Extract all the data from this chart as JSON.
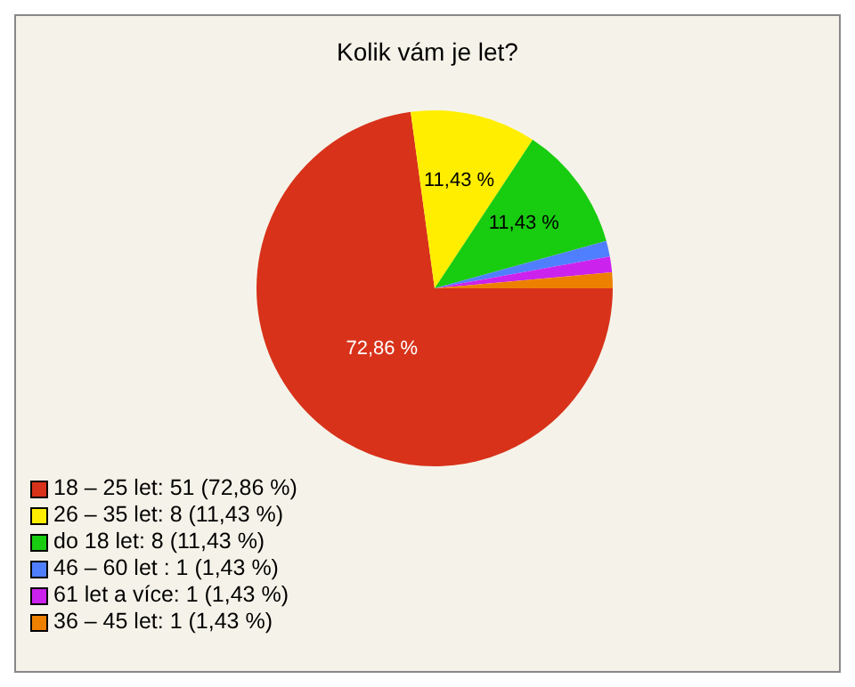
{
  "chart_data": {
    "type": "pie",
    "title": "Kolik vám je let?",
    "categories": [
      "18 – 25 let: 51 (72,86 %)",
      "26 – 35 let: 8 (11,43 %)",
      "do 18 let: 8 (11,43 %)",
      "46 – 60 let : 1 (1,43 %)",
      "61 let a více: 1 (1,43 %)",
      "36 – 45 let: 1 (1,43 %)"
    ],
    "values": [
      72.86,
      11.43,
      11.43,
      1.43,
      1.43,
      1.43
    ],
    "value_labels": [
      "72,86 %",
      "11,43 %",
      "11,43 %",
      null,
      null,
      null
    ],
    "colors": [
      "#d8321a",
      "#ffee00",
      "#18cc10",
      "#4f7fff",
      "#cc22ee",
      "#ee8000"
    ],
    "legend": "bottom left"
  }
}
